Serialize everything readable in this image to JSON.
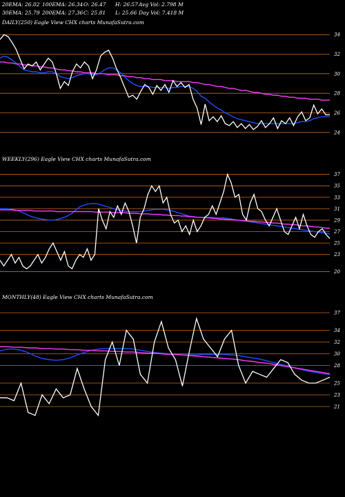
{
  "header": {
    "row1": {
      "ema20": "20EMA: 26.02",
      "ema100": "100EMA: 26.34",
      "open": "O: 26.47",
      "high": "H: 26.57",
      "avgvol": "Avg Vol: 2.798 M"
    },
    "row2": {
      "ema30": "30EMA: 25.79",
      "ema200": "200EMA: 27.36",
      "close": "C: 25.81",
      "low": "L: 25.66",
      "dayvol": "Day Vol: 7.418 M"
    }
  },
  "colors": {
    "background": "#000000",
    "price": "#ffffff",
    "grid": "#cc6a1e",
    "ema_short": "#1e4fff",
    "ema_long": "#ff3bff",
    "ema_mid": "#c8c8c8",
    "ema_brown": "#a0522d"
  },
  "chart_data": [
    {
      "type": "line",
      "title": "DAILY(250) Eagle  View  CHX  charts MunafaSutra.com",
      "ylim": [
        23,
        35
      ],
      "ticks": [
        24,
        26,
        28,
        30,
        32,
        34
      ],
      "series": [
        {
          "color": "#ffffff",
          "values": [
            33.5,
            34,
            33.8,
            33.2,
            32.5,
            31.5,
            30.5,
            31,
            30.8,
            31.2,
            30.4,
            31,
            31.6,
            31.2,
            30,
            28.5,
            29.2,
            28.8,
            30.2,
            31,
            30.6,
            31.2,
            30.8,
            29.5,
            30.4,
            31.8,
            32.2,
            32.4,
            31.6,
            30.5,
            29.6,
            28.6,
            27.6,
            27.8,
            27.4,
            28.2,
            28.9,
            28.6,
            27.9,
            28.8,
            28.3,
            28.9,
            28.1,
            29.3,
            28.7,
            29.1,
            28.6,
            28.9,
            27.4,
            26.5,
            24.8,
            26.9,
            25.2,
            25.6,
            25.1,
            25.7,
            24.9,
            24.7,
            25.1,
            24.5,
            24.9,
            24.4,
            24.8,
            24.3,
            24.6,
            25.2,
            24.5,
            24.9,
            25.5,
            24.4,
            25.2,
            24.9,
            25.5,
            24.7,
            25.6,
            26.1,
            25.2,
            25.5,
            26.8,
            25.9,
            26.4,
            25.8,
            25.8
          ]
        },
        {
          "color": "#1e4fff",
          "values": [
            31.6,
            31.8,
            31.7,
            31.4,
            31.1,
            30.7,
            30.4,
            30.3,
            30.2,
            30.2,
            30.1,
            30.1,
            30.2,
            30.2,
            30,
            29.7,
            29.6,
            29.5,
            29.6,
            29.8,
            29.9,
            30,
            30,
            29.9,
            29.9,
            30.1,
            30.4,
            30.6,
            30.6,
            30.4,
            30.1,
            29.7,
            29.3,
            29,
            28.8,
            28.7,
            28.7,
            28.7,
            28.6,
            28.6,
            28.6,
            28.6,
            28.5,
            28.6,
            28.6,
            28.7,
            28.7,
            28.7,
            28.5,
            28.2,
            27.7,
            27.5,
            27.1,
            26.8,
            26.5,
            26.3,
            26,
            25.8,
            25.6,
            25.4,
            25.3,
            25.2,
            25.1,
            25,
            24.9,
            24.9,
            24.9,
            24.9,
            24.9,
            24.9,
            24.9,
            24.9,
            24.9,
            24.9,
            25,
            25.1,
            25.1,
            25.2,
            25.4,
            25.5,
            25.6,
            25.6,
            25.6
          ]
        },
        {
          "color": "#ff3bff",
          "values": [
            31.2,
            31.2,
            31.1,
            31.1,
            31,
            31,
            30.9,
            30.9,
            30.8,
            30.8,
            30.7,
            30.7,
            30.6,
            30.6,
            30.5,
            30.4,
            30.4,
            30.3,
            30.3,
            30.2,
            30.2,
            30.1,
            30.1,
            30.1,
            30,
            30,
            30,
            29.9,
            29.9,
            29.9,
            29.8,
            29.8,
            29.7,
            29.7,
            29.6,
            29.6,
            29.5,
            29.5,
            29.4,
            29.4,
            29.4,
            29.3,
            29.3,
            29.3,
            29.2,
            29.2,
            29.2,
            29.2,
            29.1,
            29.1,
            29,
            28.9,
            28.9,
            28.8,
            28.7,
            28.7,
            28.6,
            28.5,
            28.5,
            28.4,
            28.3,
            28.3,
            28.2,
            28.1,
            28.1,
            28,
            27.9,
            27.9,
            27.8,
            27.8,
            27.7,
            27.7,
            27.6,
            27.6,
            27.5,
            27.5,
            27.5,
            27.4,
            27.4,
            27.4,
            27.3,
            27.3,
            27.3
          ]
        }
      ]
    },
    {
      "type": "line",
      "title": "WEEKLY(296) Eagle  View  CHX  charts MunafaSutra.com",
      "ylim": [
        18.5,
        39
      ],
      "ticks": [
        37,
        35,
        33,
        31,
        29,
        27,
        25,
        23,
        20
      ],
      "series": [
        {
          "color": "#ffffff",
          "values": [
            22,
            21,
            22,
            23,
            21.5,
            22.5,
            21,
            20.5,
            21,
            22,
            23,
            21.5,
            22.5,
            24,
            25,
            23.5,
            22,
            23.5,
            21,
            20.5,
            22,
            23,
            22.5,
            24,
            22,
            23,
            31,
            29,
            27.5,
            30.5,
            29.5,
            31.5,
            30,
            32,
            30.5,
            28,
            25,
            29.5,
            31,
            33.5,
            35,
            34,
            35,
            32,
            33,
            30,
            28.5,
            29,
            27,
            28,
            26.5,
            29,
            27,
            28,
            29.5,
            30,
            31.5,
            30,
            32,
            34,
            37,
            35.5,
            33,
            33.5,
            30,
            29,
            32,
            33.5,
            31,
            30.5,
            29,
            28,
            29.5,
            31,
            29,
            27,
            26.5,
            28,
            29.5,
            27.5,
            30,
            28,
            26.5,
            26,
            27,
            27.5,
            26.5,
            25.8
          ]
        },
        {
          "color": "#1e4fff",
          "values": [
            31,
            31,
            31,
            30.9,
            30.8,
            30.6,
            30.3,
            30,
            29.7,
            29.5,
            29.3,
            29.2,
            29.1,
            29,
            29,
            29.1,
            29.3,
            29.5,
            29.8,
            30.2,
            30.8,
            31.3,
            31.6,
            31.8,
            31.9,
            31.9,
            31.8,
            31.6,
            31.4,
            31.2,
            31,
            30.8,
            30.7,
            30.6,
            30.5,
            30.5,
            30.5,
            30.5,
            30.6,
            30.7,
            30.8,
            30.9,
            30.9,
            30.9,
            30.8,
            30.7,
            30.5,
            30.3,
            30.1,
            29.9,
            29.7,
            29.6,
            29.5,
            29.5,
            29.5,
            29.5,
            29.5,
            29.4,
            29.4,
            29.4,
            29.3,
            29.2,
            29.1,
            29,
            28.9,
            28.8,
            28.7,
            28.6,
            28.5,
            28.4,
            28.3,
            28.2,
            28.1,
            28,
            27.9,
            27.8,
            27.7,
            27.6,
            27.5,
            27.4,
            27.3,
            27.2,
            27.1,
            27,
            26.9,
            26.8,
            26.7,
            26.6
          ]
        },
        {
          "color": "#ff3bff",
          "values": [
            30.8,
            30.8,
            30.8,
            30.8,
            30.7,
            30.7,
            30.7,
            30.7,
            30.7,
            30.6,
            30.6,
            30.6,
            30.6,
            30.6,
            30.6,
            30.5,
            30.5,
            30.5,
            30.5,
            30.5,
            30.5,
            30.5,
            30.5,
            30.5,
            30.5,
            30.4,
            30.4,
            30.4,
            30.4,
            30.4,
            30.3,
            30.3,
            30.3,
            30.3,
            30.2,
            30.2,
            30.2,
            30.1,
            30.1,
            30.1,
            30,
            30,
            30,
            29.9,
            29.9,
            29.8,
            29.8,
            29.8,
            29.7,
            29.7,
            29.6,
            29.6,
            29.5,
            29.5,
            29.4,
            29.4,
            29.3,
            29.3,
            29.2,
            29.2,
            29.1,
            29.1,
            29,
            29,
            28.9,
            28.9,
            28.8,
            28.8,
            28.7,
            28.7,
            28.6,
            28.6,
            28.5,
            28.5,
            28.4,
            28.3,
            28.3,
            28.2,
            28.2,
            28.1,
            28,
            28,
            27.9,
            27.8,
            27.8,
            27.7,
            27.6,
            27.6
          ]
        }
      ]
    },
    {
      "type": "line",
      "title": "MONTHLY(48) Eagle  View  CHX  charts MunafaSutra.com",
      "ylim": [
        19,
        39
      ],
      "ticks": [
        37,
        34,
        32,
        30,
        28,
        25,
        23,
        21
      ],
      "series": [
        {
          "color": "#ffffff",
          "values": [
            22.5,
            22.5,
            22,
            25,
            20,
            19.5,
            23,
            21.5,
            24,
            22.5,
            23,
            27.5,
            24,
            21,
            19.5,
            29,
            32,
            28,
            34,
            32.5,
            26.5,
            25,
            32,
            35.5,
            31,
            29,
            24.5,
            30.5,
            36,
            32.5,
            31,
            29.5,
            32.5,
            34,
            28,
            25,
            27,
            26.5,
            26,
            27.5,
            29,
            28.5,
            26.5,
            25.5,
            25,
            25,
            25.5,
            26
          ]
        },
        {
          "color": "#1e4fff",
          "values": [
            30.5,
            30.8,
            30.8,
            30.6,
            30.2,
            29.6,
            29.2,
            29,
            28.9,
            29,
            29.3,
            29.8,
            30.2,
            30.6,
            30.8,
            30.9,
            30.9,
            30.9,
            30.9,
            30.8,
            30.6,
            30.4,
            30.2,
            30.1,
            30,
            29.9,
            29.8,
            29.8,
            29.8,
            29.9,
            29.9,
            29.9,
            29.9,
            29.8,
            29.7,
            29.5,
            29.3,
            29.1,
            28.8,
            28.5,
            28.2,
            27.9,
            27.6,
            27.3,
            27,
            26.8,
            26.6,
            26.5
          ]
        },
        {
          "color": "#ff3bff",
          "values": [
            31.2,
            31.2,
            31.1,
            31.1,
            31,
            31,
            30.9,
            30.9,
            30.8,
            30.8,
            30.7,
            30.7,
            30.6,
            30.6,
            30.5,
            30.5,
            30.4,
            30.4,
            30.3,
            30.3,
            30.2,
            30.1,
            30.1,
            30,
            29.9,
            29.9,
            29.8,
            29.7,
            29.6,
            29.5,
            29.4,
            29.3,
            29.2,
            29.1,
            29,
            28.8,
            28.7,
            28.5,
            28.4,
            28.2,
            28,
            27.8,
            27.6,
            27.4,
            27.2,
            27,
            26.8,
            26.6
          ]
        }
      ]
    }
  ]
}
